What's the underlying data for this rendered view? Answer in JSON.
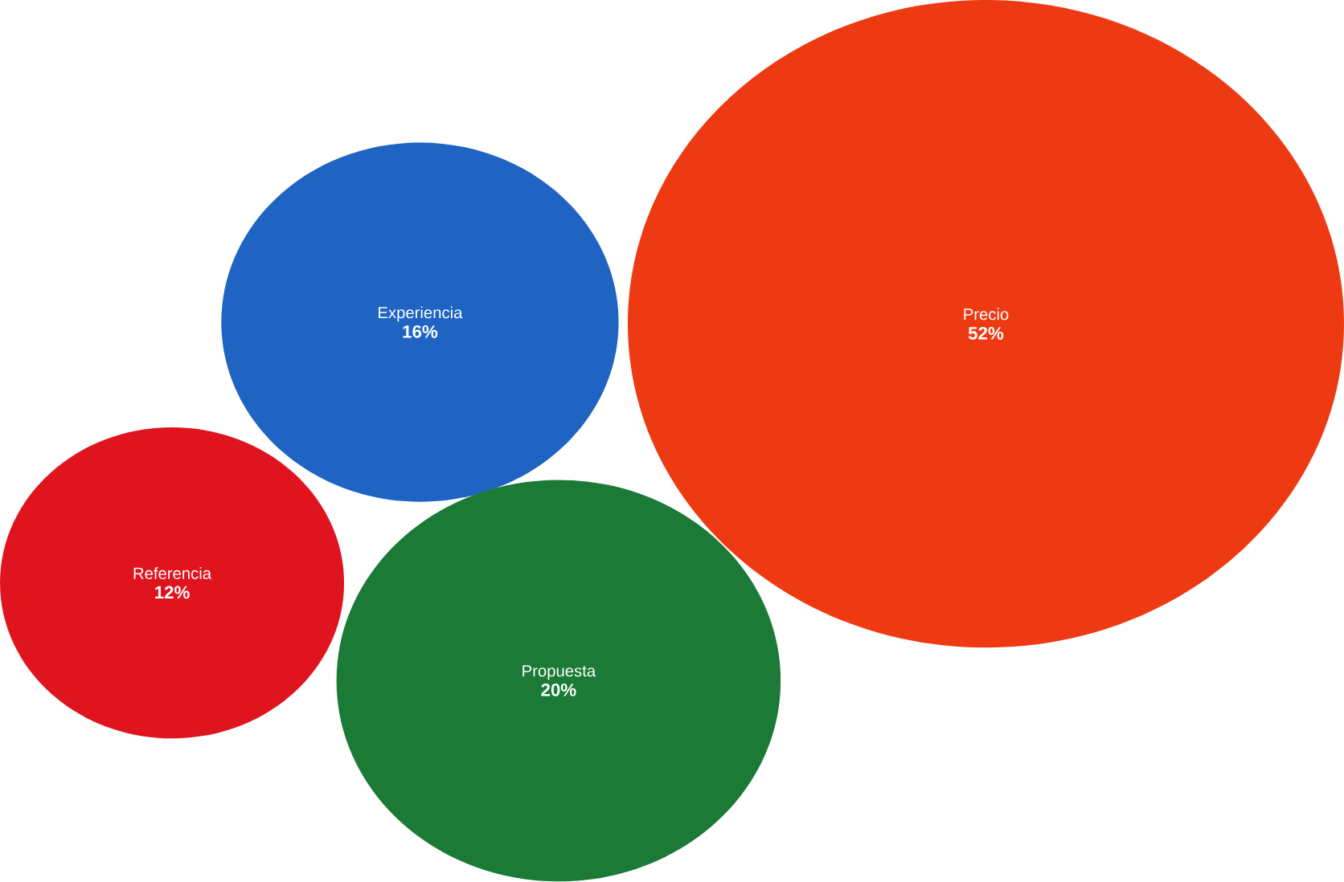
{
  "chart_data": {
    "type": "other",
    "categories": [
      "Experiencia",
      "Precio",
      "Referencia",
      "Propuesta"
    ],
    "values": [
      16,
      52,
      12,
      20
    ],
    "value_labels": [
      "16%",
      "52%",
      "12%",
      "20%"
    ],
    "colors": [
      "#1f64c2",
      "#ee3a12",
      "#e0141e",
      "#1a7a36"
    ]
  }
}
